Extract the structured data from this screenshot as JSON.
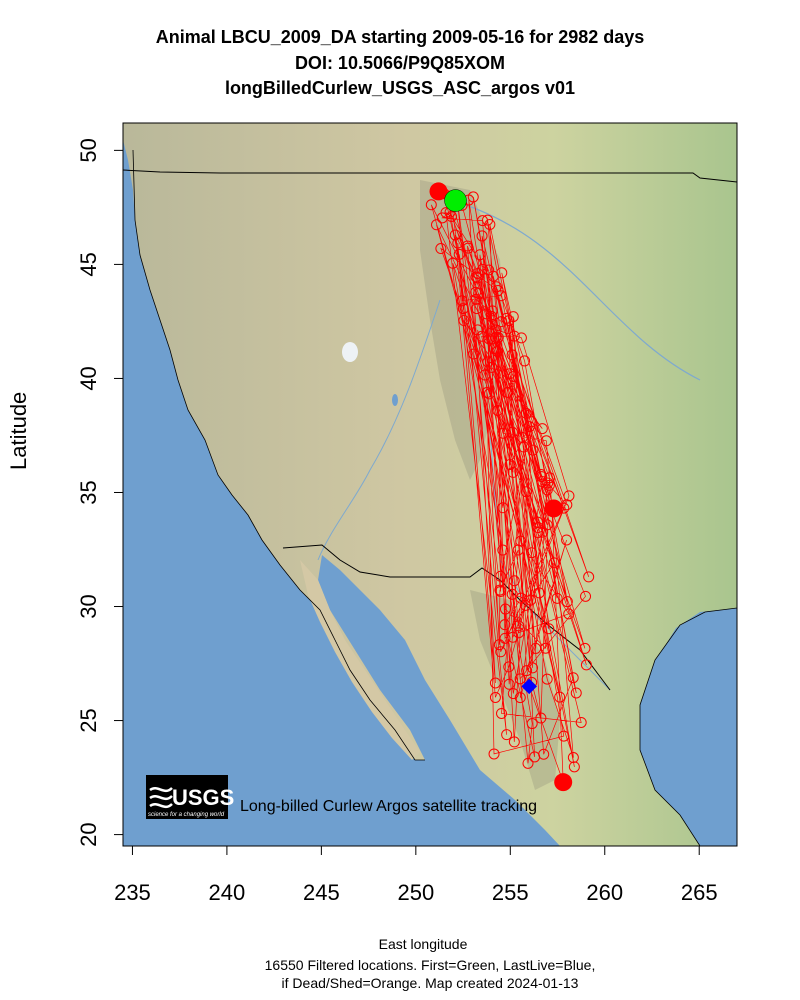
{
  "title": {
    "line1": "Animal  LBCU_2009_DA starting  2009-05-16 for 2982 days",
    "line2": "DOI: 10.5066/P9Q85XOM",
    "line3": "longBilledCurlew_USGS_ASC_argos v01"
  },
  "axes": {
    "xlabel": "East longitude",
    "ylabel": "Latitude",
    "xlim": [
      234.5,
      267
    ],
    "ylim": [
      19.5,
      51.2
    ],
    "xticks": [
      "235",
      "240",
      "245",
      "250",
      "255",
      "260",
      "265"
    ],
    "yticks": [
      "20",
      "25",
      "30",
      "35",
      "40",
      "45",
      "50"
    ]
  },
  "footnote": {
    "line1": "16550 Filtered locations. First=Green, LastLive=Blue,",
    "line2": "if Dead/Shed=Orange. Map created  2024-01-13"
  },
  "logo": {
    "text": "USGS",
    "tagline": "science for a changing world"
  },
  "caption": "Long-billed Curlew Argos satellite tracking",
  "markers": {
    "first": {
      "lon": 252.1,
      "lat": 47.8,
      "color": "#00ee00"
    },
    "last_live": {
      "lon": 256.0,
      "lat": 26.5,
      "color": "#0000ff"
    },
    "track_color": "#ff0000"
  },
  "colors": {
    "ocean": "#6f9fcf",
    "land": "#c9c79b",
    "border": "#000000"
  }
}
